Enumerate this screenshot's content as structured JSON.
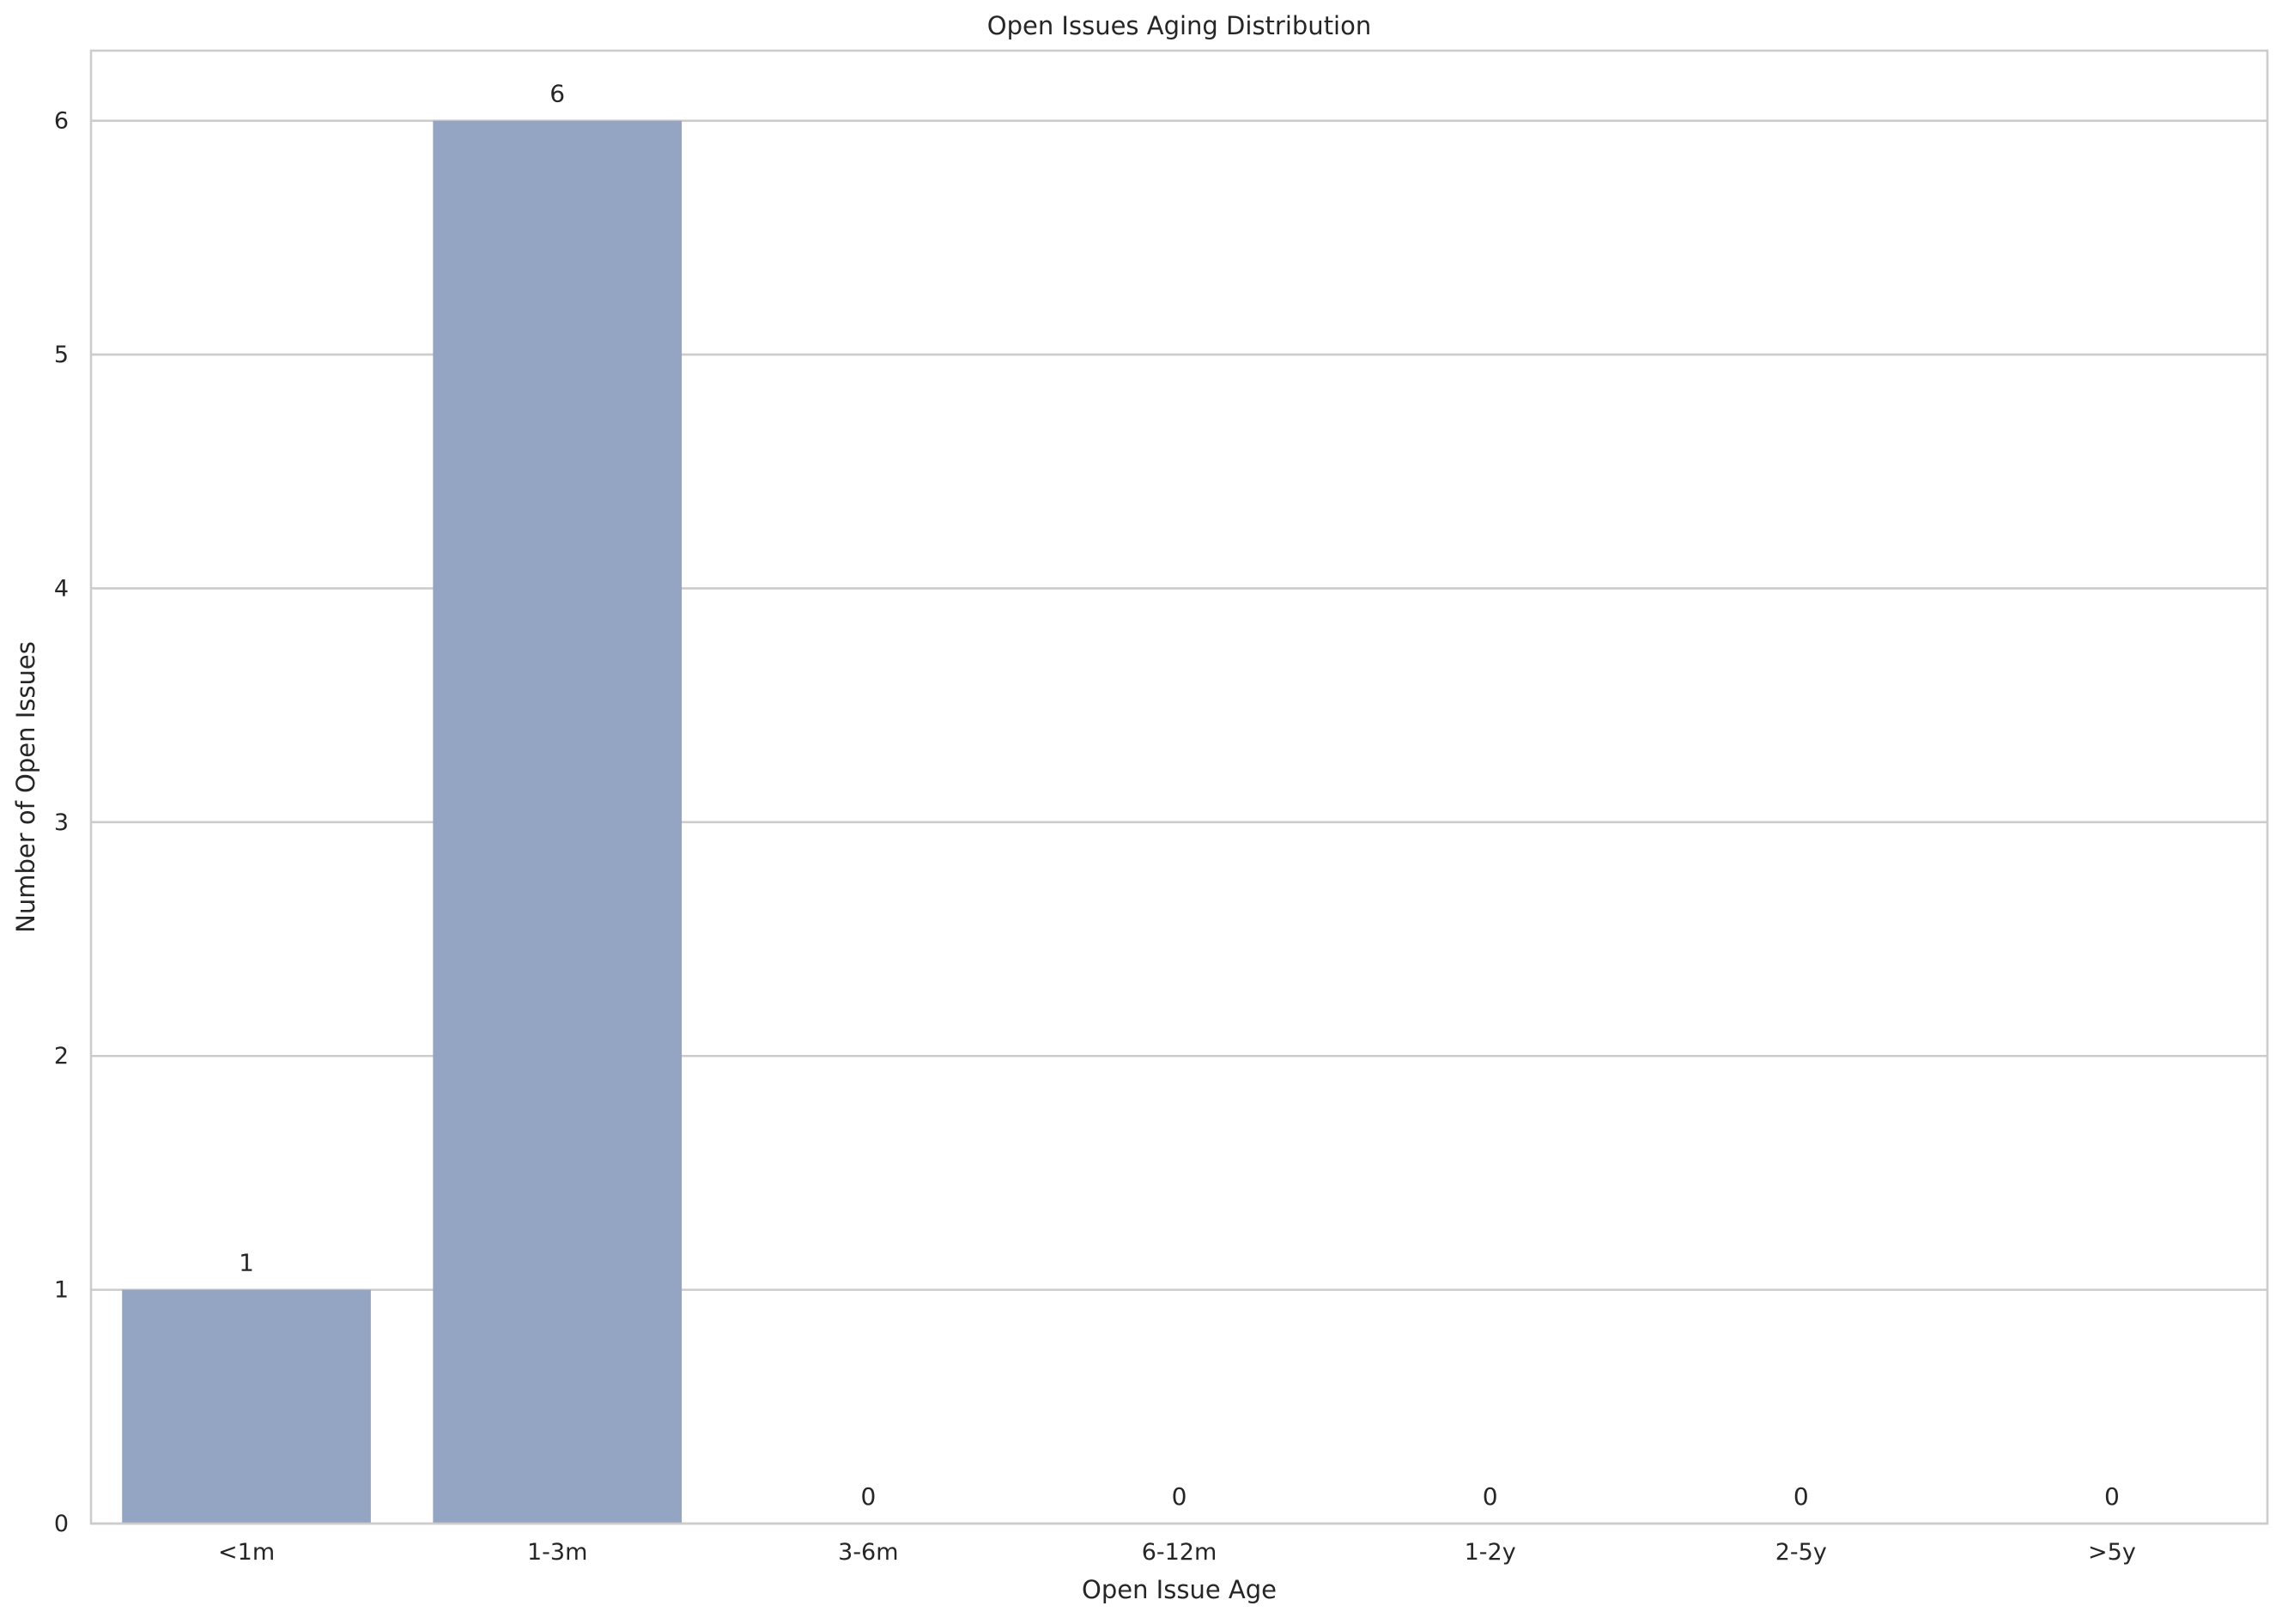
{
  "chart_data": {
    "type": "bar",
    "title": "Open Issues Aging Distribution",
    "xlabel": "Open Issue Age",
    "ylabel": "Number of Open Issues",
    "categories": [
      "<1m",
      "1-3m",
      "3-6m",
      "6-12m",
      "1-2y",
      "2-5y",
      ">5y"
    ],
    "values": [
      1,
      6,
      0,
      0,
      0,
      0,
      0
    ],
    "data_labels": [
      "1",
      "6",
      "0",
      "0",
      "0",
      "0",
      "0"
    ],
    "ylim": [
      0,
      6.3
    ],
    "yticks": [
      0,
      1,
      2,
      3,
      4,
      5,
      6
    ],
    "grid": "horizontal",
    "bar_color": "#94a5c4"
  }
}
